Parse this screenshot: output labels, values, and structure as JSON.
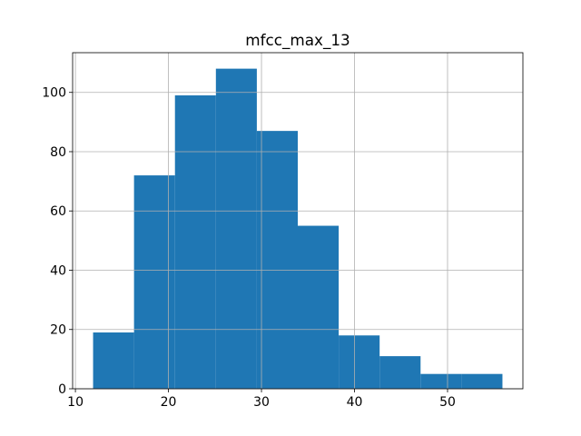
{
  "chart_data": {
    "type": "bar",
    "title": "mfcc_max_13",
    "xlabel": "",
    "ylabel": "",
    "bins": [
      {
        "x0": 11.9,
        "x1": 16.3,
        "count": 19
      },
      {
        "x0": 16.3,
        "x1": 20.7,
        "count": 72
      },
      {
        "x0": 20.7,
        "x1": 25.1,
        "count": 99
      },
      {
        "x0": 25.1,
        "x1": 29.5,
        "count": 108
      },
      {
        "x0": 29.5,
        "x1": 33.9,
        "count": 87
      },
      {
        "x0": 33.9,
        "x1": 38.3,
        "count": 55
      },
      {
        "x0": 38.3,
        "x1": 42.7,
        "count": 18
      },
      {
        "x0": 42.7,
        "x1": 47.1,
        "count": 11
      },
      {
        "x0": 47.1,
        "x1": 51.5,
        "count": 5
      },
      {
        "x0": 51.5,
        "x1": 55.9,
        "count": 5
      }
    ],
    "xlim": [
      9.7,
      58.1
    ],
    "ylim": [
      0,
      113.4
    ],
    "xticks": [
      10,
      20,
      30,
      40,
      50
    ],
    "yticks": [
      0,
      20,
      40,
      60,
      80,
      100
    ],
    "grid": true,
    "bar_color": "#1f77b4"
  }
}
